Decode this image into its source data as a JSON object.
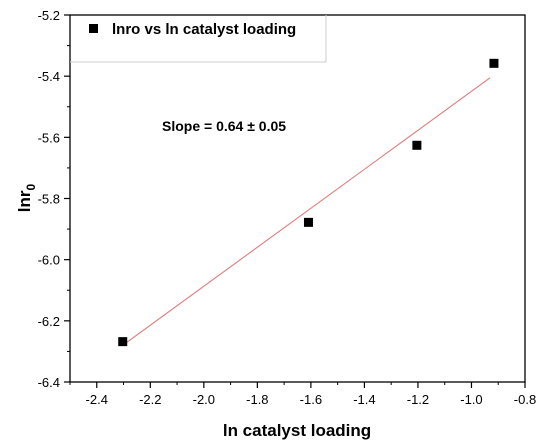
{
  "chart_data": {
    "type": "scatter",
    "xlabel": "ln catalyst loading",
    "ylabel_main": "lnr",
    "ylabel_sub": "0",
    "xlim": [
      -2.5,
      -0.8
    ],
    "ylim": [
      -6.4,
      -5.2
    ],
    "xticks": [
      -2.4,
      -2.2,
      -2.0,
      -1.8,
      -1.6,
      -1.4,
      -1.2,
      -1.0,
      -0.8
    ],
    "xtick_labels": [
      "-2.4",
      "-2.2",
      "-2.0",
      "-1.8",
      "-1.6",
      "-1.4",
      "-1.2",
      "-1.0",
      "-0.8"
    ],
    "yticks": [
      -6.4,
      -6.2,
      -6.0,
      -5.8,
      -5.6,
      -5.4,
      -5.2
    ],
    "ytick_labels": [
      "-6.4",
      "-6.2",
      "-6.0",
      "-5.8",
      "-5.6",
      "-5.4",
      "-5.2"
    ],
    "series": [
      {
        "name": "lnro vs ln catalyst loading",
        "x": [
          -2.303,
          -1.609,
          -1.204,
          -0.916
        ],
        "y": [
          -6.268,
          -5.878,
          -5.626,
          -5.358
        ],
        "color": "#000000",
        "marker": "square"
      }
    ],
    "fit_line": {
      "x": [
        -2.303,
        -0.93
      ],
      "y": [
        -6.28,
        -5.405
      ],
      "color": "#e07b7b"
    },
    "annotation": "Slope = 0.64 ± 0.05",
    "legend_position": "top-left",
    "grid": false
  }
}
